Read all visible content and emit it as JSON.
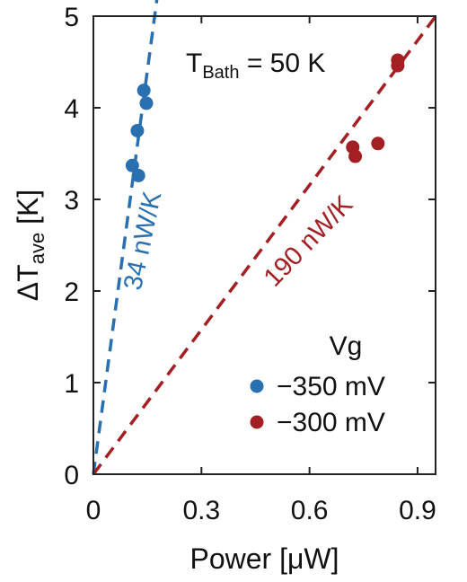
{
  "chart_data": {
    "type": "scatter",
    "xlabel": "Power [μW]",
    "ylabel": {
      "main": "ΔT",
      "sub": "ave",
      "unit": "[K]"
    },
    "xlim": [
      0,
      0.95
    ],
    "ylim": [
      0,
      5
    ],
    "xticks": [
      "0",
      "0.3",
      "0.6",
      "0.9"
    ],
    "xtick_values": [
      0,
      0.3,
      0.6,
      0.9
    ],
    "yticks": [
      "0",
      "1",
      "2",
      "3",
      "4",
      "5"
    ],
    "ytick_values": [
      0,
      1,
      2,
      3,
      4,
      5
    ],
    "grid": false,
    "annotation": {
      "main": "T",
      "sub": "Bath",
      "rest": " = 50 K"
    },
    "legend": {
      "title": "Vg",
      "position": "bottom-right"
    },
    "series": [
      {
        "name": "−350 mV",
        "color": "#2a6fb0",
        "points": [
          [
            0.108,
            3.37
          ],
          [
            0.125,
            3.26
          ],
          [
            0.122,
            3.75
          ],
          [
            0.14,
            4.19
          ],
          [
            0.147,
            4.05
          ]
        ],
        "fit": {
          "label": "34 nW/K",
          "slope": 29.4,
          "x_end": 0.177
        }
      },
      {
        "name": "−300 mV",
        "color": "#a41f23",
        "points": [
          [
            0.72,
            3.57
          ],
          [
            0.727,
            3.47
          ],
          [
            0.79,
            3.61
          ],
          [
            0.845,
            4.52
          ],
          [
            0.845,
            4.46
          ]
        ],
        "fit": {
          "label": "190 nW/K",
          "slope": 5.26,
          "x_end": 0.95
        }
      }
    ]
  }
}
